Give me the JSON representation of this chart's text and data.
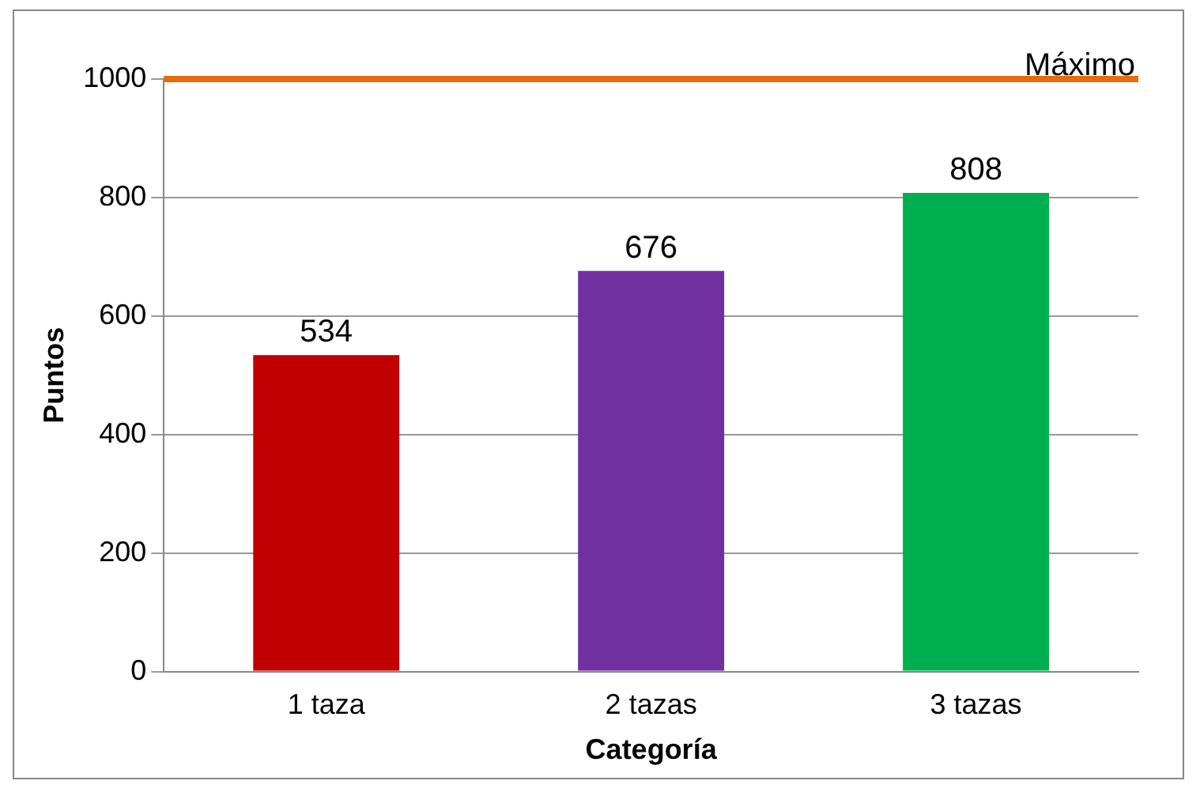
{
  "chart_data": {
    "type": "bar",
    "xlabel": "Categoría",
    "ylabel": "Puntos",
    "categories": [
      "1 taza",
      "2 tazas",
      "3 tazas"
    ],
    "values": [
      534,
      676,
      808
    ],
    "colors": [
      "#c00000",
      "#7030a0",
      "#00b050"
    ],
    "ylim": [
      0,
      1000
    ],
    "yticks": [
      0,
      200,
      400,
      600,
      800,
      1000
    ],
    "grid": "y",
    "data_labels": true,
    "legend": false,
    "ref_lines": [
      {
        "axis": "y",
        "value": 1000,
        "label": "Máximo",
        "color": "#e46c0a"
      }
    ]
  }
}
